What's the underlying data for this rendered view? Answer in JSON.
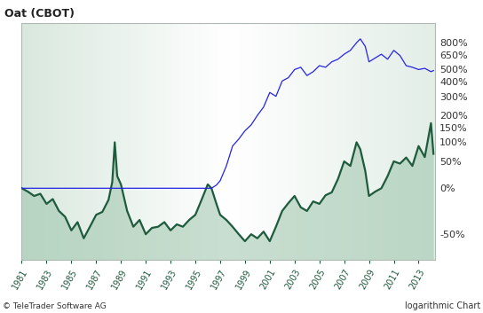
{
  "chart_data": {
    "type": "line",
    "title": "Oat (CBOT)",
    "source": "© TeleTrader Software AG",
    "note": "logarithmic Chart",
    "log": "y",
    "grid": false,
    "x": [
      1981,
      1981.5,
      1982,
      1982.5,
      1983,
      1983.5,
      1984,
      1984.5,
      1985,
      1985.5,
      1986,
      1986.5,
      1987,
      1987.5,
      1988,
      1988.3,
      1988.5,
      1988.7,
      1989,
      1989.5,
      1990,
      1990.5,
      1991,
      1991.5,
      1992,
      1992.5,
      1993,
      1993.5,
      1994,
      1994.5,
      1995,
      1995.5,
      1996,
      1996.3,
      1996.7,
      1997,
      1997.5,
      1998,
      1998.5,
      1999,
      1999.5,
      2000,
      2000.5,
      2001,
      2001.5,
      2002,
      2002.5,
      2003,
      2003.5,
      2004,
      2004.5,
      2005,
      2005.5,
      2006,
      2006.5,
      2007,
      2007.5,
      2008,
      2008.3,
      2008.7,
      2009,
      2009.5,
      2010,
      2010.5,
      2011,
      2011.5,
      2012,
      2012.5,
      2013,
      2013.5,
      2014,
      2014.2
    ],
    "series": [
      {
        "type": "area",
        "color": "#1e5a3c",
        "values": [
          0,
          -5,
          -11,
          -8,
          -21,
          -15,
          -29,
          -35,
          -47,
          -40,
          -53,
          -44,
          -33,
          -30,
          -16,
          10,
          100,
          20,
          6,
          -29,
          -44,
          -38,
          -50,
          -45,
          -44,
          -40,
          -47,
          -42,
          -44,
          -38,
          -33,
          -16,
          6,
          0,
          -21,
          -33,
          -38,
          -44,
          -50,
          -55,
          -50,
          -53,
          -48,
          -55,
          -44,
          -29,
          -20,
          -11,
          -25,
          -29,
          -18,
          -21,
          -10,
          -6,
          15,
          50,
          40,
          100,
          80,
          30,
          -11,
          -5,
          0,
          20,
          50,
          45,
          59,
          40,
          89,
          60,
          167,
          68
        ]
      },
      {
        "type": "line",
        "color": "#2424e6",
        "values": [
          0,
          0,
          0,
          0,
          0,
          0,
          0,
          0,
          0,
          0,
          0,
          0,
          0,
          0,
          0,
          0,
          0,
          0,
          0,
          0,
          0,
          0,
          0,
          0,
          0,
          0,
          0,
          0,
          0,
          0,
          0,
          0,
          0,
          0,
          5,
          12,
          40,
          89,
          110,
          138,
          160,
          200,
          240,
          324,
          300,
          404,
          430,
          499,
          520,
          447,
          480,
          535,
          520,
          573,
          600,
          655,
          700,
          798,
          851,
          750,
          573,
          613,
          655,
          600,
          700,
          640,
          535,
          520,
          499,
          510,
          480,
          490
        ]
      }
    ],
    "xlim": [
      1981,
      2014.3
    ],
    "xticks": [
      1981,
      1983,
      1985,
      1987,
      1989,
      1991,
      1993,
      1995,
      1997,
      1999,
      2001,
      2003,
      2005,
      2007,
      2009,
      2011,
      2013
    ],
    "ylim": [
      -66,
      1100
    ],
    "yticks": [
      {
        "value": -50,
        "label": "-50%"
      },
      {
        "value": 0,
        "label": "0%"
      },
      {
        "value": 50,
        "label": "50%"
      },
      {
        "value": 100,
        "label": "100%"
      },
      {
        "value": 150,
        "label": "150%"
      },
      {
        "value": 200,
        "label": "200%"
      },
      {
        "value": 300,
        "label": "300%"
      },
      {
        "value": 400,
        "label": "400%"
      },
      {
        "value": 500,
        "label": "500%"
      },
      {
        "value": 650,
        "label": "650%"
      },
      {
        "value": 800,
        "label": "800%"
      }
    ]
  }
}
